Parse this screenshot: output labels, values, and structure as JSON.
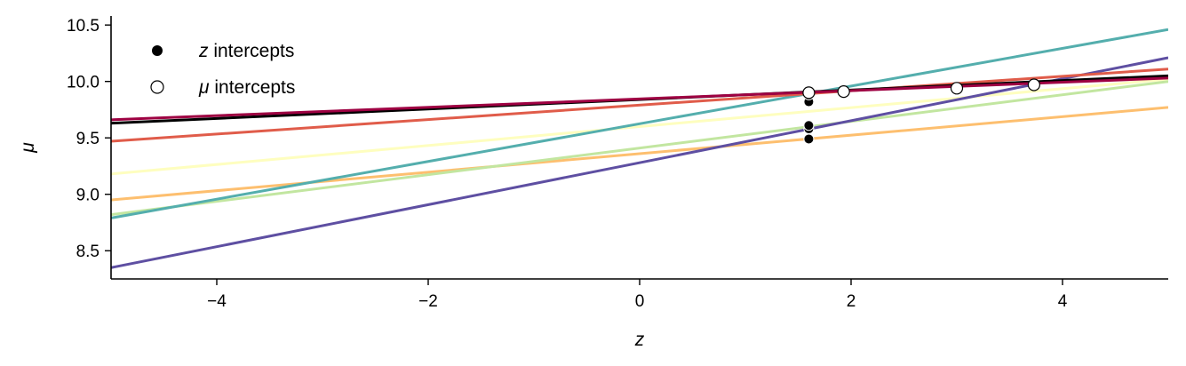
{
  "chart_data": {
    "type": "line",
    "xlabel": "z",
    "ylabel": "μ",
    "xlim": [
      -5,
      5
    ],
    "ylim": [
      8.25,
      10.58
    ],
    "xticks": [
      -4,
      -2,
      0,
      2,
      4
    ],
    "yticks": [
      8.5,
      9.0,
      9.5,
      10.0,
      10.5
    ],
    "xtick_labels": [
      "−4",
      "−2",
      "0",
      "2",
      "4"
    ],
    "ytick_labels": [
      "8.5",
      "9.0",
      "9.5",
      "10.0",
      "10.5"
    ],
    "grid": false,
    "legend": {
      "placement": "top-left",
      "entries": [
        {
          "marker": "filled-circle",
          "label_var": "z",
          "label_rest": " intercepts"
        },
        {
          "marker": "open-circle",
          "label_var": "μ",
          "label_rest": " intercepts"
        }
      ]
    },
    "series": [
      {
        "color": "#fefebf",
        "x": [
          -5,
          5
        ],
        "y": [
          9.18,
          10.02
        ]
      },
      {
        "color": "#fdbf6f",
        "x": [
          -5,
          5
        ],
        "y": [
          8.95,
          9.77
        ]
      },
      {
        "color": "#c2e6a0",
        "x": [
          -5,
          5
        ],
        "y": [
          8.82,
          10.0
        ]
      },
      {
        "color": "#5e4fa2",
        "x": [
          -5,
          5
        ],
        "y": [
          8.35,
          10.21
        ]
      },
      {
        "color": "#54aead",
        "x": [
          -5,
          5
        ],
        "y": [
          8.79,
          10.46
        ]
      },
      {
        "color": "#e05c4a",
        "x": [
          -5,
          5
        ],
        "y": [
          9.47,
          10.11
        ]
      },
      {
        "color": "#000000",
        "x": [
          -5,
          5
        ],
        "y": [
          9.63,
          10.05
        ]
      },
      {
        "color": "#9e0142",
        "x": [
          -5,
          5
        ],
        "y": [
          9.66,
          10.03
        ]
      }
    ],
    "z_intercepts": {
      "x": [
        1.6,
        1.6,
        1.6,
        1.6,
        1.6,
        1.6
      ],
      "y": [
        9.49,
        9.58,
        9.61,
        9.82,
        9.88,
        9.91
      ]
    },
    "mu_intercepts": {
      "x": [
        1.6,
        1.93,
        3.0,
        3.73
      ],
      "y": [
        9.9,
        9.91,
        9.94,
        9.97
      ]
    }
  }
}
